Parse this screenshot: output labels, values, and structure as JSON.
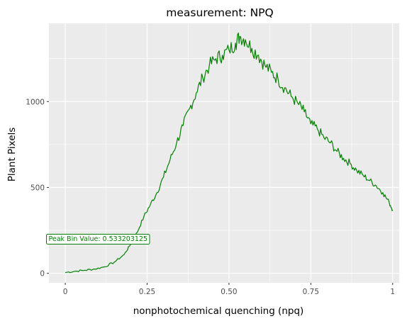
{
  "chart_data": {
    "type": "line",
    "title": "measurement: NPQ",
    "xlabel": "nonphotochemical quenching (npq)",
    "ylabel": "Plant Pixels",
    "xlim": [
      -0.05,
      1.02
    ],
    "ylim": [
      -55,
      1455
    ],
    "xticks": [
      0,
      0.25,
      0.5,
      0.75,
      1
    ],
    "xtick_labels": [
      "0",
      "0.25",
      "0.50",
      "0.75",
      "1"
    ],
    "yticks": [
      0,
      500,
      1000
    ],
    "ytick_labels": [
      "0",
      "500",
      "1000"
    ],
    "grid": true,
    "annotation": {
      "text": "Peak Bin Value: 0.533203125",
      "x": 0.1,
      "y": 203
    },
    "series": [
      {
        "color": "#008000",
        "x": [
          0.0,
          0.03,
          0.06,
          0.09,
          0.12,
          0.15,
          0.18,
          0.2,
          0.22,
          0.24,
          0.26,
          0.28,
          0.3,
          0.32,
          0.34,
          0.36,
          0.38,
          0.4,
          0.42,
          0.44,
          0.46,
          0.48,
          0.5,
          0.52,
          0.533,
          0.55,
          0.57,
          0.59,
          0.61,
          0.63,
          0.65,
          0.67,
          0.69,
          0.71,
          0.73,
          0.75,
          0.77,
          0.79,
          0.81,
          0.83,
          0.85,
          0.87,
          0.89,
          0.91,
          0.93,
          0.95,
          0.97,
          0.99,
          1.0
        ],
        "y": [
          5,
          12,
          18,
          25,
          38,
          65,
          110,
          170,
          240,
          330,
          400,
          470,
          560,
          660,
          760,
          860,
          960,
          1050,
          1140,
          1210,
          1250,
          1270,
          1300,
          1340,
          1380,
          1360,
          1310,
          1270,
          1210,
          1170,
          1130,
          1080,
          1030,
          990,
          940,
          870,
          840,
          790,
          760,
          710,
          670,
          640,
          600,
          570,
          540,
          510,
          470,
          410,
          370
        ]
      }
    ]
  }
}
